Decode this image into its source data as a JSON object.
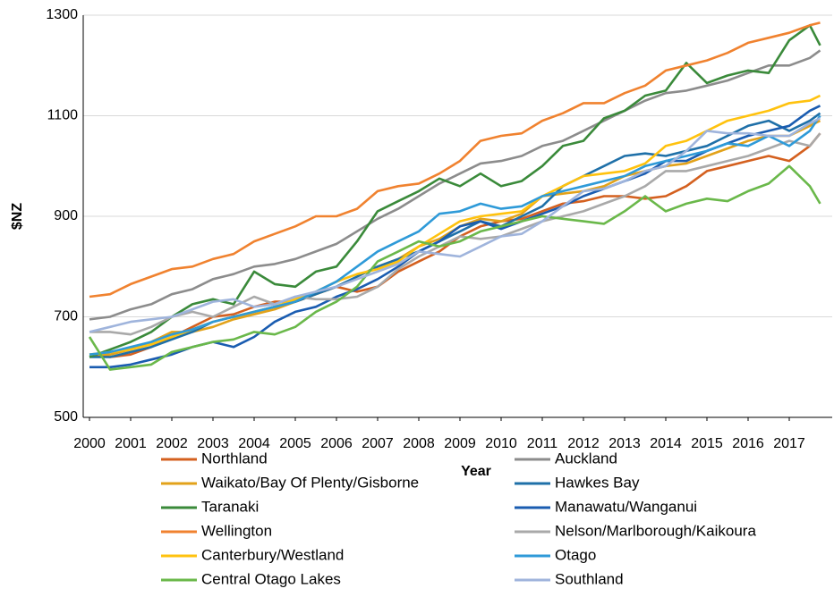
{
  "chart_data": {
    "type": "line",
    "x_label": "Year",
    "y_label": "$NZ",
    "x": [
      2000,
      2000.5,
      2001,
      2001.5,
      2002,
      2002.5,
      2003,
      2003.5,
      2004,
      2004.5,
      2005,
      2005.5,
      2006,
      2006.5,
      2007,
      2007.5,
      2008,
      2008.5,
      2009,
      2009.5,
      2010,
      2010.5,
      2011,
      2011.5,
      2012,
      2012.5,
      2013,
      2013.5,
      2014,
      2014.5,
      2015,
      2015.5,
      2016,
      2016.5,
      2017,
      2017.5,
      2017.75
    ],
    "xlim": [
      2000,
      2018
    ],
    "xticks": [
      2000,
      2001,
      2002,
      2003,
      2004,
      2005,
      2006,
      2007,
      2008,
      2009,
      2010,
      2011,
      2012,
      2013,
      2014,
      2015,
      2016,
      2017
    ],
    "ylim": [
      500,
      1300
    ],
    "yticks": [
      500,
      700,
      900,
      1100,
      1300
    ],
    "grid": true,
    "legend": "bottom",
    "series": [
      {
        "name": "Northland",
        "color": "#d4601f",
        "values": [
          625,
          620,
          625,
          640,
          660,
          680,
          700,
          705,
          720,
          730,
          730,
          745,
          760,
          750,
          760,
          790,
          810,
          830,
          860,
          880,
          890,
          895,
          910,
          925,
          930,
          940,
          940,
          935,
          940,
          960,
          990,
          1000,
          1010,
          1020,
          1010,
          1040,
          1065
        ]
      },
      {
        "name": "Auckland",
        "color": "#8c8c8c",
        "values": [
          695,
          700,
          715,
          725,
          745,
          755,
          775,
          785,
          800,
          805,
          815,
          830,
          845,
          870,
          895,
          915,
          940,
          965,
          985,
          1005,
          1010,
          1020,
          1040,
          1050,
          1070,
          1090,
          1110,
          1130,
          1145,
          1150,
          1160,
          1170,
          1185,
          1200,
          1200,
          1215,
          1230
        ]
      },
      {
        "name": "Waikato/Bay Of Plenty/Gisborne",
        "color": "#e2a21a",
        "values": [
          625,
          625,
          635,
          650,
          670,
          670,
          680,
          695,
          705,
          715,
          730,
          745,
          760,
          780,
          800,
          815,
          840,
          855,
          880,
          895,
          890,
          905,
          940,
          945,
          950,
          960,
          980,
          990,
          1000,
          1005,
          1020,
          1035,
          1050,
          1060,
          1060,
          1080,
          1090
        ]
      },
      {
        "name": "Hawkes Bay",
        "color": "#1f70a8",
        "values": [
          620,
          620,
          630,
          640,
          655,
          670,
          690,
          700,
          710,
          720,
          730,
          745,
          760,
          780,
          800,
          815,
          830,
          850,
          870,
          890,
          880,
          900,
          920,
          960,
          980,
          1000,
          1020,
          1025,
          1020,
          1030,
          1040,
          1060,
          1080,
          1090,
          1070,
          1090,
          1105
        ]
      },
      {
        "name": "Taranaki",
        "color": "#3a8a3a",
        "values": [
          620,
          635,
          650,
          670,
          700,
          725,
          735,
          725,
          790,
          765,
          760,
          790,
          800,
          850,
          910,
          930,
          950,
          975,
          960,
          985,
          960,
          970,
          1000,
          1040,
          1050,
          1095,
          1110,
          1140,
          1150,
          1205,
          1165,
          1180,
          1190,
          1185,
          1250,
          1280,
          1240
        ]
      },
      {
        "name": "Manawatu/Wanganui",
        "color": "#1a5cb0",
        "values": [
          600,
          600,
          605,
          615,
          625,
          640,
          650,
          640,
          660,
          690,
          710,
          720,
          740,
          755,
          775,
          800,
          830,
          850,
          880,
          890,
          875,
          890,
          905,
          920,
          940,
          955,
          970,
          985,
          1010,
          1010,
          1030,
          1045,
          1060,
          1070,
          1080,
          1110,
          1120
        ]
      },
      {
        "name": "Wellington",
        "color": "#f0822f",
        "values": [
          740,
          745,
          765,
          780,
          795,
          800,
          815,
          825,
          850,
          865,
          880,
          900,
          900,
          915,
          950,
          960,
          965,
          985,
          1010,
          1050,
          1060,
          1065,
          1090,
          1105,
          1125,
          1125,
          1145,
          1160,
          1190,
          1200,
          1210,
          1225,
          1245,
          1255,
          1265,
          1280,
          1285
        ]
      },
      {
        "name": "Nelson/Marlborough/Kaikoura",
        "color": "#a9a9a9",
        "values": [
          670,
          670,
          665,
          680,
          700,
          710,
          700,
          720,
          740,
          725,
          740,
          735,
          735,
          740,
          760,
          795,
          820,
          840,
          860,
          855,
          860,
          875,
          890,
          900,
          910,
          925,
          940,
          960,
          990,
          990,
          1000,
          1010,
          1020,
          1035,
          1050,
          1040,
          1065
        ]
      },
      {
        "name": "Canterbury/Westland",
        "color": "#ffc20e",
        "values": [
          625,
          630,
          635,
          645,
          660,
          675,
          690,
          700,
          710,
          720,
          735,
          750,
          770,
          785,
          795,
          810,
          840,
          865,
          890,
          900,
          905,
          910,
          940,
          960,
          980,
          985,
          990,
          1005,
          1040,
          1050,
          1070,
          1090,
          1100,
          1110,
          1125,
          1130,
          1140
        ]
      },
      {
        "name": "Otago",
        "color": "#2e9ad8",
        "values": [
          625,
          630,
          640,
          650,
          665,
          675,
          690,
          700,
          710,
          720,
          730,
          750,
          770,
          800,
          830,
          850,
          870,
          905,
          910,
          925,
          915,
          920,
          940,
          950,
          960,
          970,
          980,
          1000,
          1010,
          1020,
          1030,
          1045,
          1040,
          1060,
          1040,
          1070,
          1100
        ]
      },
      {
        "name": "Central Otago Lakes",
        "color": "#6ab84a",
        "values": [
          660,
          595,
          600,
          605,
          630,
          640,
          650,
          655,
          670,
          665,
          680,
          710,
          730,
          760,
          810,
          830,
          850,
          840,
          850,
          870,
          880,
          890,
          900,
          895,
          890,
          885,
          910,
          940,
          910,
          925,
          935,
          930,
          950,
          965,
          1000,
          960,
          925
        ]
      },
      {
        "name": "Southland",
        "color": "#9fb4dc",
        "values": [
          670,
          680,
          690,
          695,
          700,
          715,
          730,
          735,
          720,
          725,
          740,
          750,
          760,
          775,
          790,
          805,
          830,
          825,
          820,
          840,
          860,
          865,
          890,
          920,
          950,
          955,
          970,
          990,
          1000,
          1030,
          1070,
          1065,
          1065,
          1060,
          1060,
          1085,
          1095
        ]
      }
    ]
  }
}
